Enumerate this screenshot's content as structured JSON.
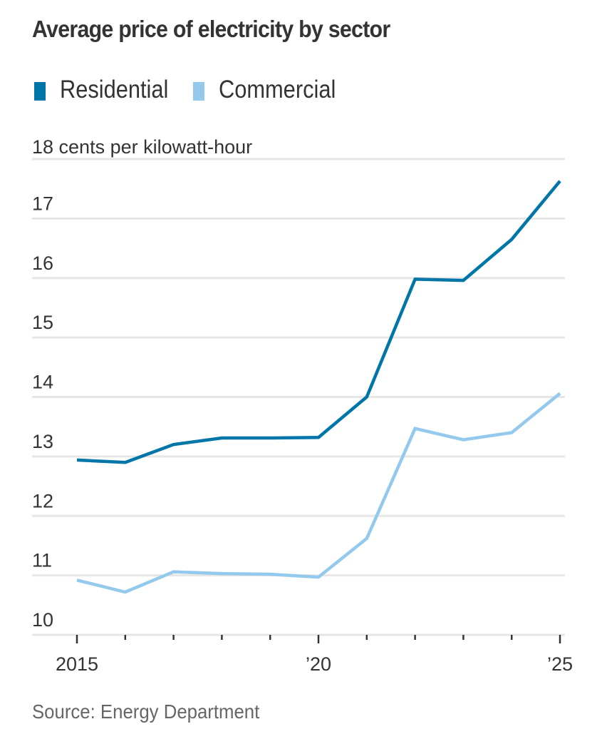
{
  "chart_data": {
    "type": "line",
    "title": "Average price of electricity by sector",
    "unit_label": "18 cents per kilowatt-hour",
    "xlabel": "",
    "ylabel": "cents per kilowatt-hour",
    "source": "Source: Energy Department",
    "x": [
      2015,
      2016,
      2017,
      2018,
      2019,
      2020,
      2021,
      2022,
      2023,
      2024,
      2025
    ],
    "x_tick_labels": [
      {
        "x": 2015,
        "label": "2015"
      },
      {
        "x": 2020,
        "label": "’20"
      },
      {
        "x": 2025,
        "label": "’25"
      }
    ],
    "y_ticks": [
      10,
      11,
      12,
      13,
      14,
      15,
      16,
      17,
      18
    ],
    "y_tick_labels": [
      "10",
      "11",
      "12",
      "13",
      "14",
      "15",
      "16",
      "17",
      ""
    ],
    "ylim": [
      10,
      18
    ],
    "xlim": [
      2015,
      2025
    ],
    "grid": true,
    "legend_position": "top-left",
    "series": [
      {
        "name": "Residential",
        "color": "#0075a8",
        "values": [
          12.94,
          12.9,
          13.2,
          13.31,
          13.31,
          13.32,
          14.0,
          15.98,
          15.96,
          16.65,
          17.63
        ]
      },
      {
        "name": "Commercial",
        "color": "#93c9ec",
        "values": [
          10.92,
          10.72,
          11.06,
          11.03,
          11.02,
          10.97,
          11.62,
          13.47,
          13.28,
          13.4,
          14.06
        ]
      }
    ]
  },
  "colors": {
    "text": "#333333",
    "source_text": "#666666",
    "grid": "#e6e6e6",
    "tick": "#333333"
  }
}
